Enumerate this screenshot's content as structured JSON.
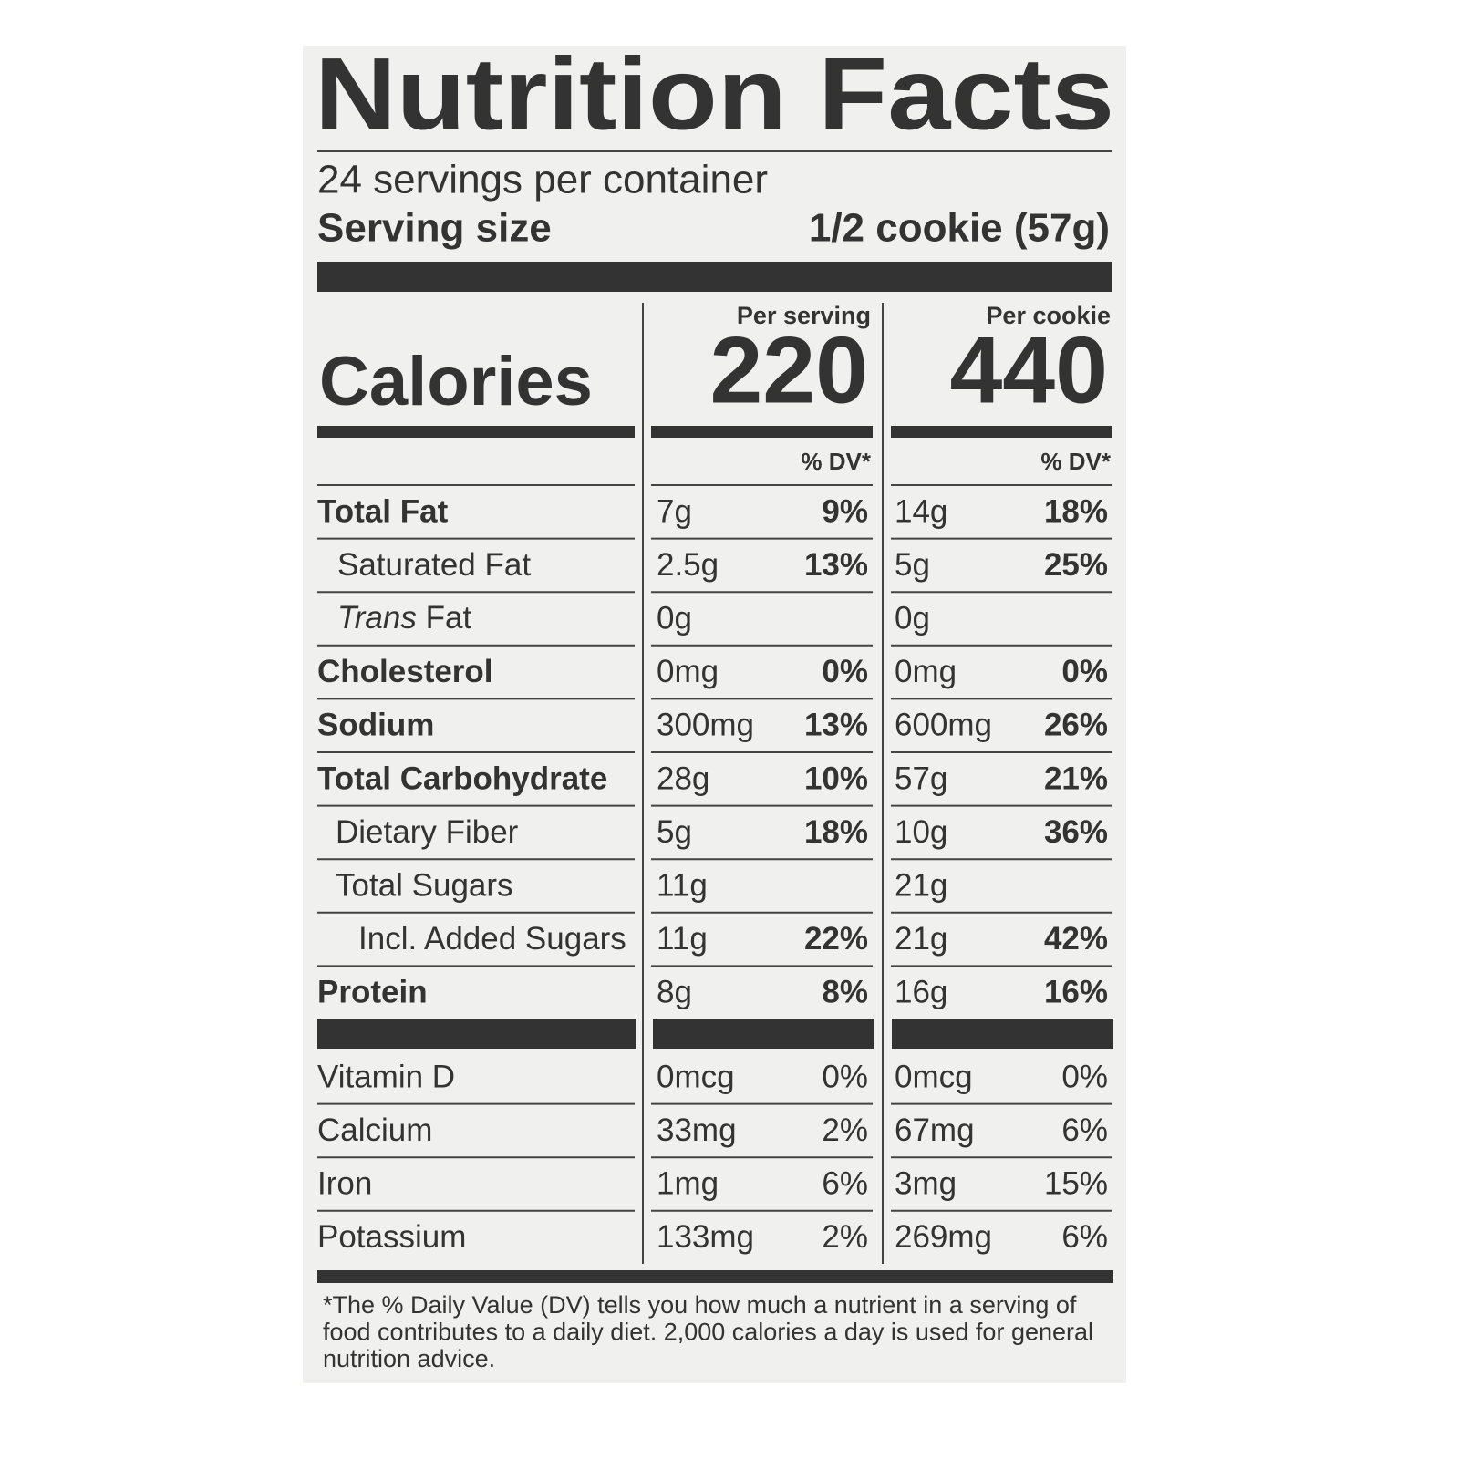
{
  "header": {
    "title": "Nutrition Facts",
    "servings": "24 servings per container",
    "serving_size_label": "Serving size",
    "serving_size_value": "1/2 cookie (57g)"
  },
  "columns": [
    "Per serving",
    "Per cookie"
  ],
  "calories": {
    "label": "Calories",
    "values": [
      "220",
      "440"
    ]
  },
  "dv_header": [
    "% DV*",
    "% DV*"
  ],
  "nutrients": [
    {
      "name": "Total Fat",
      "per_serving": {
        "amount": "7g",
        "dv": "9%"
      },
      "per_cookie": {
        "amount": "14g",
        "dv": "18%"
      }
    },
    {
      "name": "Saturated Fat",
      "per_serving": {
        "amount": "2.5g",
        "dv": "13%"
      },
      "per_cookie": {
        "amount": "5g",
        "dv": "25%"
      }
    },
    {
      "italic": "Trans",
      "name": "Fat",
      "per_serving": {
        "amount": "0g"
      },
      "per_cookie": {
        "amount": "0g"
      }
    },
    {
      "name": "Cholesterol",
      "per_serving": {
        "amount": "0mg",
        "dv": "0%"
      },
      "per_cookie": {
        "amount": "0mg",
        "dv": "0%"
      }
    },
    {
      "name": "Sodium",
      "per_serving": {
        "amount": "300mg",
        "dv": "13%"
      },
      "per_cookie": {
        "amount": "600mg",
        "dv": "26%"
      }
    },
    {
      "name": "Total Carbohydrate",
      "per_serving": {
        "amount": "28g",
        "dv": "10%"
      },
      "per_cookie": {
        "amount": "57g",
        "dv": "21%"
      }
    },
    {
      "name": "Dietary Fiber",
      "per_serving": {
        "amount": "5g",
        "dv": "18%"
      },
      "per_cookie": {
        "amount": "10g",
        "dv": "36%"
      }
    },
    {
      "name": "Total Sugars",
      "per_serving": {
        "amount": "11g"
      },
      "per_cookie": {
        "amount": "21g"
      }
    },
    {
      "name": "Incl. Added Sugars",
      "per_serving": {
        "amount": "11g",
        "dv": "22%"
      },
      "per_cookie": {
        "amount": "21g",
        "dv": "42%"
      }
    },
    {
      "name": "Protein",
      "per_serving": {
        "amount": "8g",
        "dv": "8%"
      },
      "per_cookie": {
        "amount": "16g",
        "dv": "16%"
      }
    }
  ],
  "vitamins": [
    {
      "name": "Vitamin D",
      "per_serving": {
        "amount": "0mcg",
        "dv": "0%"
      },
      "per_cookie": {
        "amount": "0mcg",
        "dv": "0%"
      }
    },
    {
      "name": "Calcium",
      "per_serving": {
        "amount": "33mg",
        "dv": "2%"
      },
      "per_cookie": {
        "amount": "67mg",
        "dv": "6%"
      }
    },
    {
      "name": "Iron",
      "per_serving": {
        "amount": "1mg",
        "dv": "6%"
      },
      "per_cookie": {
        "amount": "3mg",
        "dv": "15%"
      }
    },
    {
      "name": "Potassium",
      "per_serving": {
        "amount": "133mg",
        "dv": "2%"
      },
      "per_cookie": {
        "amount": "269mg",
        "dv": "6%"
      }
    }
  ],
  "footnote": [
    "*The % Daily Value (DV) tells you how much a nutrient in a serving of",
    "food contributes to a daily diet. 2,000 calories a day is used for general",
    "nutrition advice."
  ]
}
